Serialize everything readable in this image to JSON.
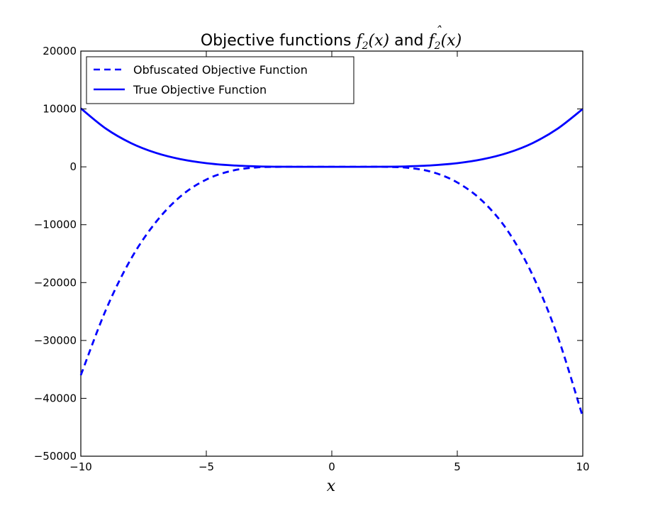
{
  "chart_data": {
    "type": "line",
    "title": {
      "prefix": "Objective functions ",
      "f_var": "f",
      "f_sub": "2",
      "f_arg": "(x)",
      "connector": " and ",
      "fhat_hat": "ˆ",
      "fhat_var": "f",
      "fhat_sub": "2",
      "fhat_arg": "(x)"
    },
    "xlabel": "x",
    "ylabel": "",
    "xlim": [
      -10,
      10
    ],
    "ylim": [
      -50000,
      20000
    ],
    "xticks": [
      {
        "value": -10,
        "label": "−10"
      },
      {
        "value": -5,
        "label": "−5"
      },
      {
        "value": 0,
        "label": "0"
      },
      {
        "value": 5,
        "label": "5"
      },
      {
        "value": 10,
        "label": "10"
      }
    ],
    "yticks": [
      {
        "value": 20000,
        "label": "20000"
      },
      {
        "value": 10000,
        "label": "10000"
      },
      {
        "value": 0,
        "label": "0"
      },
      {
        "value": -10000,
        "label": "−10000"
      },
      {
        "value": -20000,
        "label": "−20000"
      },
      {
        "value": -30000,
        "label": "−30000"
      },
      {
        "value": -40000,
        "label": "−40000"
      },
      {
        "value": -50000,
        "label": "−50000"
      }
    ],
    "grid": false,
    "legend_placement": "top-left",
    "series": [
      {
        "name": "Obfuscated Objective Function",
        "style": "dashed",
        "color": "#0000ff",
        "x": [
          -10,
          -9,
          -8,
          -7,
          -6,
          -5,
          -4,
          -3,
          -2,
          -1,
          0,
          1,
          2,
          3,
          4,
          5,
          6,
          7,
          8,
          9,
          10
        ],
        "y": [
          -36000,
          -24700,
          -15900,
          -9500,
          -5000,
          -2200,
          -700,
          -100,
          0,
          0,
          0,
          0,
          0,
          -150,
          -900,
          -2700,
          -5900,
          -11000,
          -18700,
          -29300,
          -43200
        ]
      },
      {
        "name": "True Objective Function",
        "style": "solid",
        "color": "#0000ff",
        "x": [
          -10,
          -9,
          -8,
          -7,
          -6,
          -5,
          -4,
          -3,
          -2,
          -1,
          0,
          1,
          2,
          3,
          4,
          5,
          6,
          7,
          8,
          9,
          10
        ],
        "y": [
          10100,
          6600,
          4100,
          2400,
          1300,
          630,
          260,
          80,
          16,
          1,
          0,
          1,
          16,
          80,
          260,
          630,
          1300,
          2400,
          4100,
          6600,
          10000
        ]
      }
    ]
  }
}
